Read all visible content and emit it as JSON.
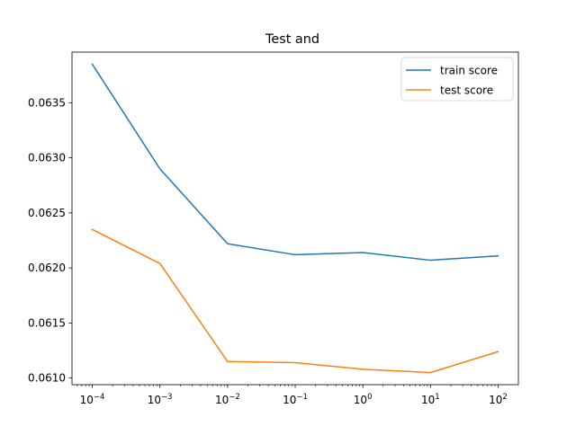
{
  "chart_data": {
    "type": "line",
    "title": "Test and",
    "xlabel": "",
    "ylabel": "",
    "xscale": "log",
    "x": [
      0.0001,
      0.001,
      0.01,
      0.1,
      1,
      10,
      100
    ],
    "x_tick_labels": [
      {
        "base": "10",
        "exp": "−4"
      },
      {
        "base": "10",
        "exp": "−3"
      },
      {
        "base": "10",
        "exp": "−2"
      },
      {
        "base": "10",
        "exp": "−1"
      },
      {
        "base": "10",
        "exp": "0"
      },
      {
        "base": "10",
        "exp": "1"
      },
      {
        "base": "10",
        "exp": "2"
      }
    ],
    "yticks": [
      0.061,
      0.0615,
      0.062,
      0.0625,
      0.063,
      0.0635
    ],
    "ytick_labels": [
      "0.0610",
      "0.0615",
      "0.0620",
      "0.0625",
      "0.0630",
      "0.0635"
    ],
    "ylim": [
      0.06094,
      0.06396
    ],
    "xlim_decades": [
      -4.3,
      2.3
    ],
    "grid": false,
    "legend_position": "upper right",
    "series": [
      {
        "name": "train score",
        "color": "#1f77b4",
        "values": [
          0.06385,
          0.0629,
          0.06222,
          0.06212,
          0.06214,
          0.06207,
          0.06211
        ]
      },
      {
        "name": "test score",
        "color": "#ff7f0e",
        "values": [
          0.06235,
          0.06204,
          0.06115,
          0.06114,
          0.06108,
          0.06105,
          0.06124
        ]
      }
    ]
  }
}
